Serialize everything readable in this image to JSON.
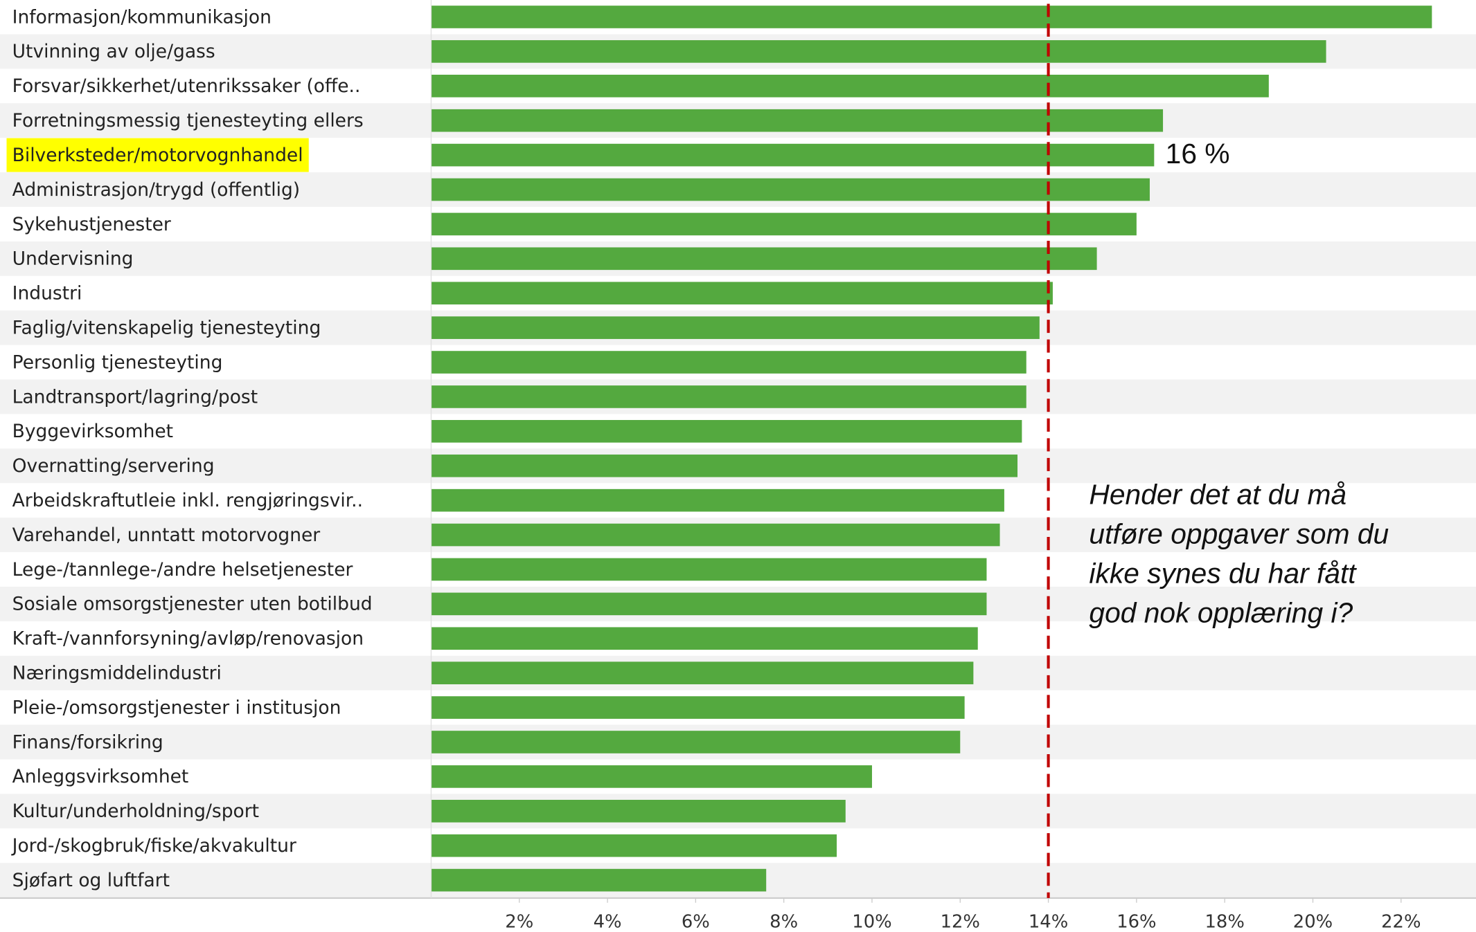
{
  "chart_data": {
    "type": "bar",
    "orientation": "horizontal",
    "categories": [
      "Informasjon/kommunikasjon",
      "Utvinning av olje/gass",
      "Forsvar/sikkerhet/utenrikssaker (offe..",
      "Forretningsmessig tjenesteyting ellers",
      "Bilverksteder/motorvognhandel",
      "Administrasjon/trygd (offentlig)",
      "Sykehustjenester",
      "Undervisning",
      "Industri",
      "Faglig/vitenskapelig tjenesteyting",
      "Personlig tjenesteyting",
      "Landtransport/lagring/post",
      "Byggevirksomhet",
      "Overnatting/servering",
      "Arbeidskraftutleie inkl. rengjøringsvir..",
      "Varehandel, unntatt motorvogner",
      "Lege-/tannlege-/andre helsetjenester",
      "Sosiale omsorgstjenester uten botilbud",
      "Kraft-/vannforsyning/avløp/renovasjon",
      "Næringsmiddelindustri",
      "Pleie-/omsorgstjenester i institusjon",
      "Finans/forsikring",
      "Anleggsvirksomhet",
      "Kultur/underholdning/sport",
      "Jord-/skogbruk/fiske/akvakultur",
      "Sjøfart og luftfart"
    ],
    "values": [
      22.7,
      20.3,
      19.0,
      16.6,
      16.4,
      16.3,
      16.0,
      15.1,
      14.1,
      13.8,
      13.5,
      13.5,
      13.4,
      13.3,
      13.0,
      12.9,
      12.6,
      12.6,
      12.4,
      12.3,
      12.1,
      12.0,
      10.0,
      9.4,
      9.2,
      7.6
    ],
    "value_labels": [
      null,
      null,
      null,
      null,
      "16 %",
      null,
      null,
      null,
      null,
      null,
      null,
      null,
      null,
      null,
      null,
      null,
      null,
      null,
      null,
      null,
      null,
      null,
      null,
      null,
      null,
      null
    ],
    "color": "#54a93f",
    "highlight_index": 4,
    "highlight_color": "#ffff00",
    "xlim": [
      0,
      23.7
    ],
    "xticks": [
      {
        "value": 2,
        "label": "2%"
      },
      {
        "value": 4,
        "label": "4%"
      },
      {
        "value": 6,
        "label": "6%"
      },
      {
        "value": 8,
        "label": "8%"
      },
      {
        "value": 10,
        "label": "10%"
      },
      {
        "value": 12,
        "label": "12%"
      },
      {
        "value": 14,
        "label": "14%"
      },
      {
        "value": 16,
        "label": "16%"
      },
      {
        "value": 18,
        "label": "18%"
      },
      {
        "value": 20,
        "label": "20%"
      },
      {
        "value": 22,
        "label": "22%"
      }
    ],
    "reference_line": {
      "value": 14,
      "color": "#c00000"
    },
    "annotation": [
      "Hender det at du må",
      "utføre oppgaver som du",
      "ikke synes du har fått",
      "god nok opplæring i?"
    ],
    "grid": false
  }
}
